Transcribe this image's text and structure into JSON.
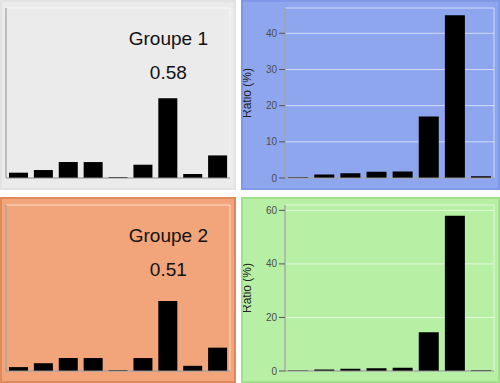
{
  "chart_data": [
    {
      "type": "bar",
      "title": "Groupe 1",
      "subtitle": "0.58",
      "categories": [
        null,
        null,
        null,
        null,
        null,
        null,
        null,
        null,
        null
      ],
      "values": [
        2,
        3,
        6,
        6,
        0.3,
        5,
        30,
        1.5,
        8.5
      ],
      "color": "#000000",
      "ylim": [
        0,
        64
      ],
      "yticks": [
        0,
        20,
        40,
        60
      ],
      "grid": true,
      "tick_labels": false
    },
    {
      "type": "bar",
      "y_label": "Ratio (%)",
      "categories": [
        null,
        null,
        null,
        null,
        null,
        null,
        null,
        null
      ],
      "values": [
        0.2,
        1,
        1.3,
        1.7,
        1.8,
        17,
        45,
        0.5
      ],
      "color": "#000000",
      "ylim": [
        0,
        47
      ],
      "yticks": [
        0,
        10,
        20,
        30,
        40
      ],
      "grid": true,
      "tick_labels": "y"
    },
    {
      "type": "bar",
      "title": "Groupe 2",
      "subtitle": "0.51",
      "categories": [
        null,
        null,
        null,
        null,
        null,
        null,
        null,
        null,
        null
      ],
      "values": [
        1.5,
        3,
        5,
        5,
        0.3,
        5,
        27,
        2,
        9
      ],
      "color": "#000000",
      "ylim": [
        0,
        64
      ],
      "yticks": [
        0,
        20,
        40,
        60
      ],
      "grid": true,
      "tick_labels": false
    },
    {
      "type": "bar",
      "y_label": "Ratio (%)",
      "categories": [
        null,
        null,
        null,
        null,
        null,
        null,
        null,
        null
      ],
      "values": [
        0.2,
        0.6,
        0.8,
        1,
        1.2,
        14.5,
        58,
        0.3
      ],
      "color": "#000000",
      "ylim": [
        0,
        62
      ],
      "yticks": [
        0,
        20,
        40,
        60
      ],
      "grid": true,
      "tick_labels": "y"
    }
  ]
}
